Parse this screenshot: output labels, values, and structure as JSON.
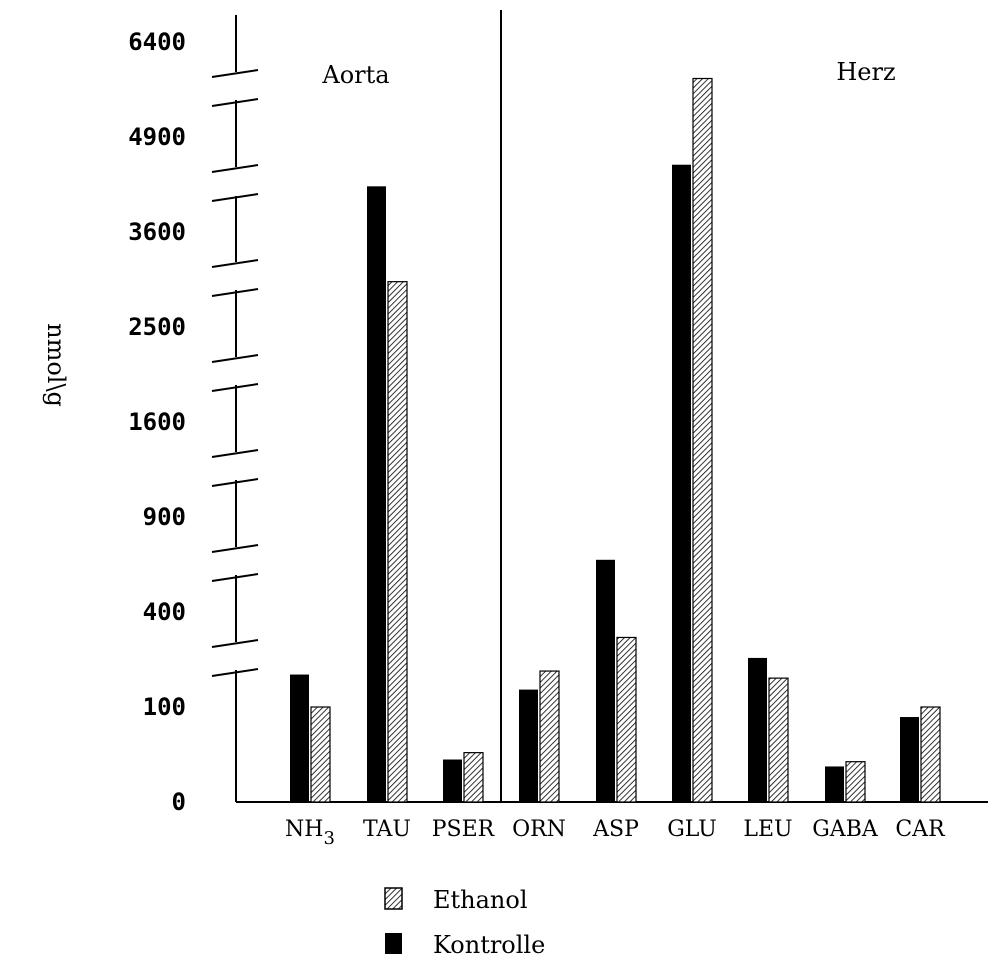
{
  "chart_data": {
    "type": "bar",
    "ylabel": "nmol\\g",
    "yticks": [
      "0",
      "100",
      "400",
      "900",
      "1600",
      "2500",
      "3600",
      "4900",
      "6400"
    ],
    "ylim": [
      0,
      6400
    ],
    "y_scale": "square-root (broken axis)",
    "groups": [
      {
        "label": "Aorta",
        "categories": [
          "NH3",
          "TAU",
          "PSER"
        ]
      },
      {
        "label": "Herz",
        "categories": [
          "ORN",
          "ASP",
          "GLU",
          "LEU",
          "GABA",
          "CAR"
        ]
      }
    ],
    "categories": [
      {
        "base": "NH",
        "sub": "3"
      },
      {
        "base": "TAU"
      },
      {
        "base": "PSER"
      },
      {
        "base": "ORN"
      },
      {
        "base": "ASP"
      },
      {
        "base": "GLU"
      },
      {
        "base": "LEU"
      },
      {
        "base": "GABA"
      },
      {
        "base": "CAR"
      }
    ],
    "series": [
      {
        "name": "Kontrolle",
        "fill": "#000000",
        "values": [
          180,
          4200,
          20,
          140,
          650,
          4500,
          230,
          14,
          80
        ]
      },
      {
        "name": "Ethanol",
        "fill": "hatched",
        "values": [
          100,
          3000,
          27,
          190,
          300,
          5800,
          170,
          18,
          100
        ]
      }
    ],
    "legend": {
      "position": "bottom",
      "entries": [
        "Ethanol",
        "Kontrolle"
      ]
    },
    "grid": false
  }
}
